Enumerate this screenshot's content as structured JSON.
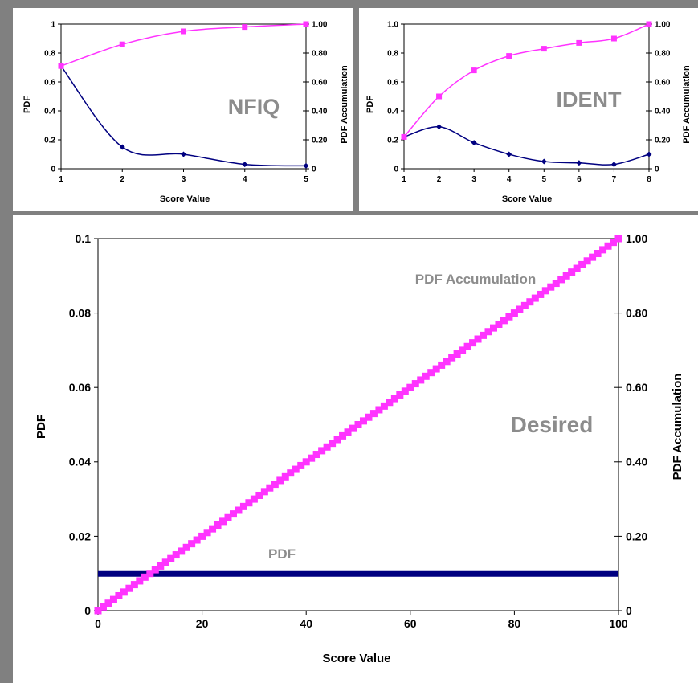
{
  "colors": {
    "pdf_series": "#000080",
    "accum_series": "#ff33ff",
    "annotation": "#8c8c8c",
    "frame": "#808080"
  },
  "chart_data": [
    {
      "type": "line",
      "annotation": "NFIQ",
      "xlabel": "Score Value",
      "ylabel": "PDF",
      "y2label": "PDF Accumulation",
      "xlim": [
        1,
        5
      ],
      "ylim": [
        0,
        1
      ],
      "y2lim": [
        0,
        1
      ],
      "x_ticks": [
        "1",
        "2",
        "3",
        "4",
        "5"
      ],
      "y_ticks": [
        "0",
        "0.2",
        "0.4",
        "0.6",
        "0.8",
        "1"
      ],
      "y2_ticks": [
        "0",
        "0.20",
        "0.40",
        "0.60",
        "0.80",
        "1.00"
      ],
      "grid": false,
      "series": [
        {
          "axis": "left",
          "x": [
            1,
            2,
            3,
            4,
            5
          ],
          "y": [
            0.71,
            0.15,
            0.1,
            0.03,
            0.02
          ]
        },
        {
          "axis": "right",
          "x": [
            1,
            2,
            3,
            4,
            5
          ],
          "y": [
            0.71,
            0.86,
            0.95,
            0.98,
            1.0
          ]
        }
      ]
    },
    {
      "type": "line",
      "annotation": "IDENT",
      "xlabel": "Score Value",
      "ylabel": "PDF",
      "y2label": "PDF Accumulation",
      "xlim": [
        1,
        8
      ],
      "ylim": [
        0,
        1
      ],
      "y2lim": [
        0,
        1
      ],
      "x_ticks": [
        "1",
        "2",
        "3",
        "4",
        "5",
        "6",
        "7",
        "8"
      ],
      "y_ticks": [
        "0",
        "0.2",
        "0.4",
        "0.6",
        "0.8",
        "1.0"
      ],
      "y2_ticks": [
        "0",
        "0.20",
        "0.40",
        "0.60",
        "0.80",
        "1.00"
      ],
      "grid": false,
      "series": [
        {
          "axis": "left",
          "x": [
            1,
            2,
            3,
            4,
            5,
            6,
            7,
            8
          ],
          "y": [
            0.22,
            0.29,
            0.18,
            0.1,
            0.05,
            0.04,
            0.03,
            0.1
          ]
        },
        {
          "axis": "right",
          "x": [
            1,
            2,
            3,
            4,
            5,
            6,
            7,
            8
          ],
          "y": [
            0.22,
            0.5,
            0.68,
            0.78,
            0.83,
            0.87,
            0.9,
            1.0
          ]
        }
      ]
    },
    {
      "type": "line",
      "annotation": "Desired",
      "xlabel": "Score Value",
      "ylabel": "PDF",
      "y2label": "PDF Accumulation",
      "xlim": [
        0,
        100
      ],
      "ylim": [
        0,
        0.1
      ],
      "y2lim": [
        0,
        1
      ],
      "x_ticks": [
        "0",
        "20",
        "40",
        "60",
        "80",
        "100"
      ],
      "y_ticks": [
        "0",
        "0.02",
        "0.04",
        "0.06",
        "0.08",
        "0.1"
      ],
      "y2_ticks": [
        "0",
        "0.20",
        "0.40",
        "0.60",
        "0.80",
        "1.00"
      ],
      "grid": false,
      "series_labels": [
        "PDF",
        "PDF Accumulation"
      ],
      "series": [
        {
          "axis": "left",
          "x": [
            0,
            100
          ],
          "y": [
            0.01,
            0.01
          ],
          "note": "constant"
        },
        {
          "axis": "right",
          "x": [
            0,
            100
          ],
          "y": [
            0,
            1.0
          ],
          "note": "linear, one point per integer score"
        }
      ]
    }
  ]
}
